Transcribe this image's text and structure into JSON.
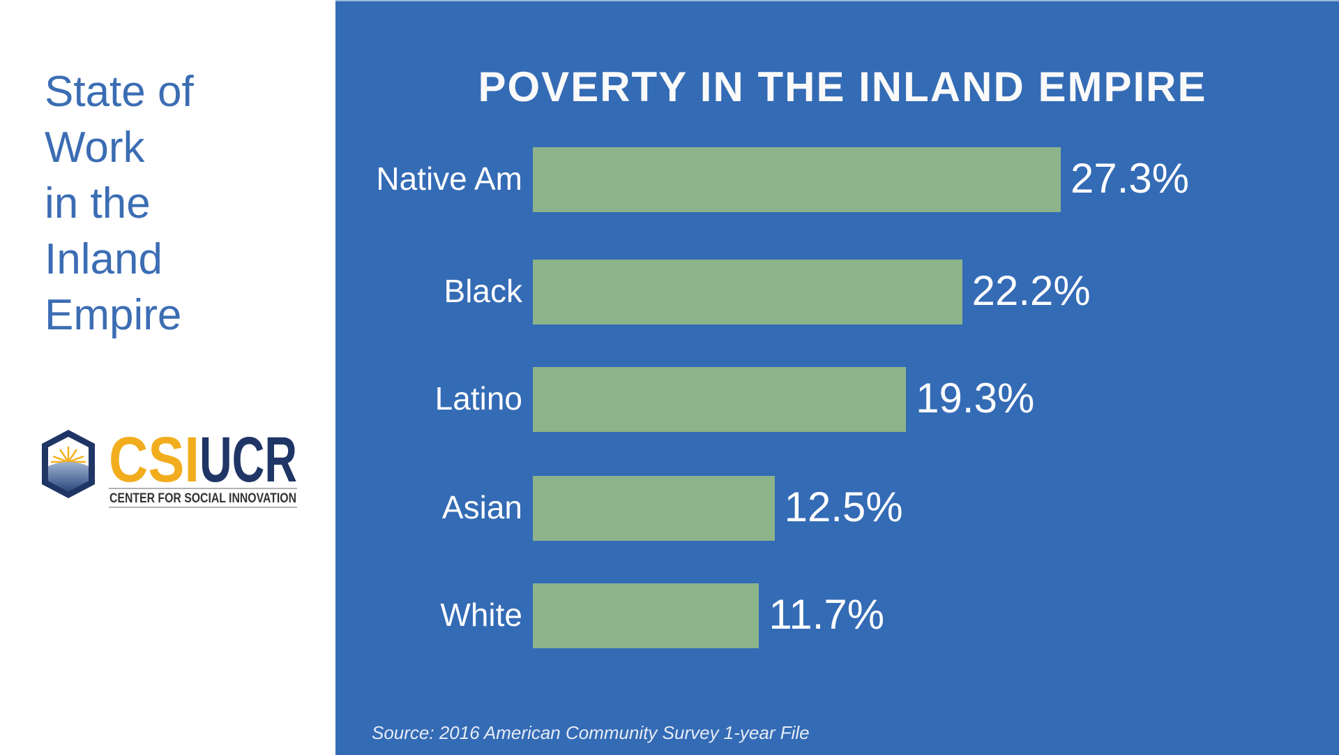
{
  "sidebar": {
    "title_lines": [
      "State of",
      "Work",
      "in the",
      "Inland",
      "Empire"
    ],
    "logo": {
      "text_csi": "CSI",
      "text_ucr": "UCR",
      "subtitle": "CENTER FOR SOCIAL INNOVATION"
    }
  },
  "chart_data": {
    "type": "bar",
    "orientation": "horizontal",
    "title": "POVERTY IN THE INLAND EMPIRE",
    "categories": [
      "Native Am",
      "Black",
      "Latino",
      "Asian",
      "White"
    ],
    "values": [
      27.3,
      22.2,
      19.3,
      12.5,
      11.7
    ],
    "value_labels": [
      "27.3%",
      "22.2%",
      "19.3%",
      "12.5%",
      "11.7%"
    ],
    "unit": "%",
    "xlabel": "",
    "ylabel": "",
    "grid": false,
    "source": "Source: 2016 American Community Survey 1-year File",
    "colors": {
      "bar": "#8db38b",
      "background": "#346bb5",
      "text": "#ffffff"
    }
  }
}
